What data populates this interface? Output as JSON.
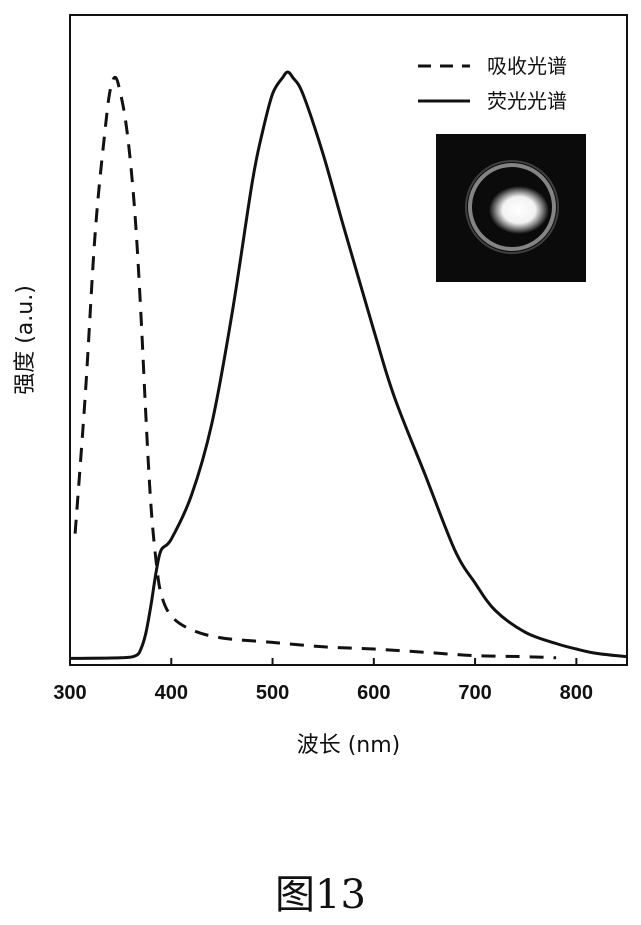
{
  "caption": "图13",
  "chart_data": {
    "type": "line",
    "xlabel": "波长 (nm)",
    "ylabel": "强度 (a.u.)",
    "xlim": [
      300,
      850
    ],
    "ylim": [
      0,
      1.1
    ],
    "x_ticks": [
      300,
      400,
      500,
      600,
      700,
      800
    ],
    "y_ticks_shown": false,
    "legend_position": "top-right",
    "inset": "photo of glowing droplet (bright white core inside ring) on black background",
    "series": [
      {
        "name": "吸收光谱",
        "style": "dashed",
        "color": "#111111",
        "x": [
          305,
          315,
          325,
          335,
          340,
          345,
          350,
          355,
          360,
          365,
          370,
          375,
          380,
          385,
          390,
          400,
          420,
          450,
          500,
          550,
          600,
          650,
          700,
          750,
          780
        ],
        "y": [
          0.23,
          0.48,
          0.78,
          0.97,
          1.04,
          1.06,
          1.03,
          0.98,
          0.9,
          0.79,
          0.63,
          0.44,
          0.28,
          0.18,
          0.12,
          0.08,
          0.055,
          0.04,
          0.032,
          0.024,
          0.02,
          0.014,
          0.008,
          0.006,
          0.004
        ]
      },
      {
        "name": "荧光光谱",
        "style": "solid",
        "color": "#111111",
        "x": [
          300,
          350,
          365,
          370,
          375,
          380,
          385,
          390,
          400,
          420,
          440,
          460,
          480,
          490,
          500,
          510,
          515,
          520,
          530,
          550,
          570,
          600,
          620,
          650,
          680,
          700,
          720,
          750,
          780,
          800,
          820,
          850
        ],
        "y": [
          0.003,
          0.004,
          0.008,
          0.02,
          0.05,
          0.1,
          0.16,
          0.2,
          0.22,
          0.3,
          0.43,
          0.63,
          0.87,
          0.96,
          1.03,
          1.06,
          1.07,
          1.06,
          1.03,
          0.92,
          0.79,
          0.6,
          0.48,
          0.34,
          0.2,
          0.14,
          0.09,
          0.05,
          0.03,
          0.02,
          0.012,
          0.006
        ]
      }
    ]
  }
}
